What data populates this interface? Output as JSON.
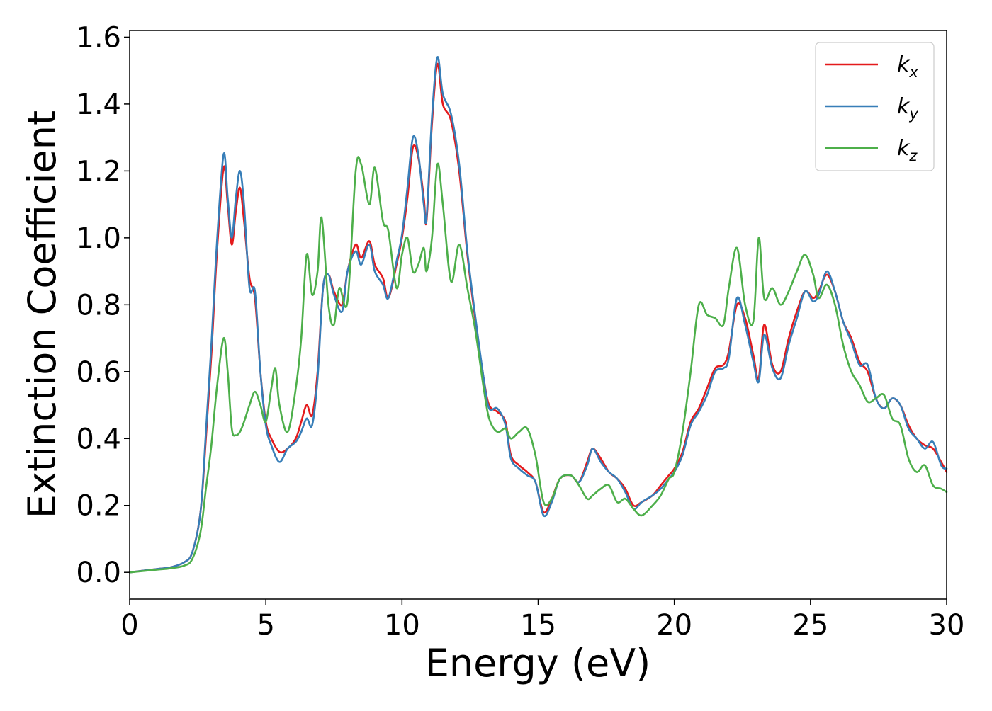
{
  "chart_data": {
    "type": "line",
    "title": "",
    "xlabel": "Energy (eV)",
    "ylabel": "Extinction Coefficient",
    "xlim": [
      0,
      30
    ],
    "ylim": [
      -0.08,
      1.62
    ],
    "xticks": [
      0,
      5,
      10,
      15,
      20,
      25,
      30
    ],
    "yticks": [
      0.0,
      0.2,
      0.4,
      0.6,
      0.8,
      1.0,
      1.2,
      1.4,
      1.6
    ],
    "xtick_labels": [
      "0",
      "5",
      "10",
      "15",
      "20",
      "25",
      "30"
    ],
    "ytick_labels": [
      "0.0",
      "0.2",
      "0.4",
      "0.6",
      "0.8",
      "1.0",
      "1.2",
      "1.4",
      "1.6"
    ],
    "grid": false,
    "legend": {
      "position": "top-right"
    },
    "series": [
      {
        "name": "k_x",
        "label_main": "k",
        "label_sub": "x",
        "color": "#e41a1c",
        "x": [
          0,
          1,
          1.5,
          2,
          2.3,
          2.6,
          2.8,
          3.0,
          3.2,
          3.45,
          3.6,
          3.75,
          3.9,
          4.05,
          4.2,
          4.4,
          4.6,
          4.8,
          5.0,
          5.2,
          5.5,
          5.8,
          6.1,
          6.3,
          6.5,
          6.7,
          6.9,
          7.1,
          7.3,
          7.5,
          7.8,
          8.0,
          8.3,
          8.5,
          8.8,
          9.0,
          9.3,
          9.5,
          9.8,
          10.0,
          10.2,
          10.4,
          10.6,
          10.8,
          10.9,
          11.1,
          11.3,
          11.5,
          11.8,
          12.1,
          12.4,
          12.7,
          13.0,
          13.2,
          13.5,
          13.8,
          14.0,
          14.3,
          14.6,
          14.9,
          15.2,
          15.5,
          15.8,
          16.2,
          16.5,
          16.8,
          17.0,
          17.3,
          17.6,
          17.9,
          18.2,
          18.5,
          18.8,
          19.2,
          19.5,
          19.8,
          20.0,
          20.3,
          20.6,
          20.9,
          21.2,
          21.5,
          21.8,
          22.0,
          22.3,
          22.6,
          22.9,
          23.1,
          23.3,
          23.6,
          23.9,
          24.2,
          24.5,
          24.8,
          25.1,
          25.3,
          25.6,
          25.9,
          26.2,
          26.5,
          26.8,
          27.1,
          27.4,
          27.7,
          28.0,
          28.3,
          28.6,
          28.9,
          29.2,
          29.5,
          29.8,
          30.0
        ],
        "y": [
          0.0,
          0.01,
          0.015,
          0.03,
          0.06,
          0.18,
          0.4,
          0.65,
          0.95,
          1.21,
          1.1,
          0.98,
          1.08,
          1.15,
          1.05,
          0.88,
          0.82,
          0.6,
          0.45,
          0.4,
          0.36,
          0.37,
          0.4,
          0.45,
          0.5,
          0.47,
          0.6,
          0.85,
          0.89,
          0.84,
          0.8,
          0.9,
          0.98,
          0.94,
          0.99,
          0.92,
          0.88,
          0.82,
          0.92,
          1.0,
          1.12,
          1.27,
          1.24,
          1.12,
          1.05,
          1.34,
          1.52,
          1.4,
          1.35,
          1.2,
          0.95,
          0.75,
          0.58,
          0.5,
          0.48,
          0.45,
          0.35,
          0.32,
          0.3,
          0.27,
          0.18,
          0.22,
          0.28,
          0.29,
          0.27,
          0.33,
          0.37,
          0.34,
          0.3,
          0.28,
          0.25,
          0.2,
          0.21,
          0.23,
          0.26,
          0.29,
          0.31,
          0.36,
          0.45,
          0.49,
          0.55,
          0.61,
          0.62,
          0.66,
          0.8,
          0.76,
          0.65,
          0.58,
          0.74,
          0.62,
          0.6,
          0.7,
          0.78,
          0.84,
          0.82,
          0.84,
          0.89,
          0.84,
          0.75,
          0.7,
          0.63,
          0.6,
          0.52,
          0.49,
          0.52,
          0.5,
          0.44,
          0.4,
          0.38,
          0.37,
          0.33,
          0.3
        ],
        "note_ignore": ""
      },
      {
        "name": "k_y",
        "label_main": "k",
        "label_sub": "y",
        "color": "#377eb8",
        "x": [
          0,
          1,
          1.5,
          2,
          2.3,
          2.6,
          2.8,
          3.0,
          3.2,
          3.45,
          3.6,
          3.75,
          3.9,
          4.05,
          4.2,
          4.4,
          4.6,
          4.8,
          5.0,
          5.2,
          5.5,
          5.8,
          6.1,
          6.3,
          6.5,
          6.7,
          6.9,
          7.1,
          7.3,
          7.5,
          7.8,
          8.0,
          8.3,
          8.5,
          8.8,
          9.0,
          9.3,
          9.5,
          9.8,
          10.0,
          10.2,
          10.4,
          10.6,
          10.8,
          10.9,
          11.1,
          11.3,
          11.5,
          11.8,
          12.1,
          12.4,
          12.7,
          13.0,
          13.2,
          13.5,
          13.8,
          14.0,
          14.3,
          14.6,
          14.9,
          15.2,
          15.5,
          15.8,
          16.2,
          16.5,
          16.8,
          17.0,
          17.3,
          17.6,
          17.9,
          18.2,
          18.5,
          18.8,
          19.2,
          19.5,
          19.8,
          20.0,
          20.3,
          20.6,
          20.9,
          21.2,
          21.5,
          21.8,
          22.0,
          22.3,
          22.6,
          22.9,
          23.1,
          23.3,
          23.6,
          23.9,
          24.2,
          24.5,
          24.8,
          25.1,
          25.3,
          25.6,
          25.9,
          26.2,
          26.5,
          26.8,
          27.1,
          27.4,
          27.7,
          28.0,
          28.3,
          28.6,
          28.9,
          29.2,
          29.5,
          29.8,
          30.0
        ],
        "y": [
          0.0,
          0.01,
          0.015,
          0.03,
          0.06,
          0.18,
          0.42,
          0.68,
          0.98,
          1.25,
          1.12,
          1.0,
          1.12,
          1.2,
          1.1,
          0.85,
          0.84,
          0.6,
          0.44,
          0.38,
          0.33,
          0.37,
          0.39,
          0.42,
          0.46,
          0.44,
          0.58,
          0.85,
          0.89,
          0.83,
          0.78,
          0.9,
          0.96,
          0.92,
          0.98,
          0.9,
          0.86,
          0.82,
          0.93,
          1.01,
          1.15,
          1.3,
          1.25,
          1.1,
          1.06,
          1.36,
          1.54,
          1.43,
          1.37,
          1.22,
          0.96,
          0.76,
          0.58,
          0.49,
          0.49,
          0.44,
          0.34,
          0.31,
          0.29,
          0.27,
          0.17,
          0.21,
          0.28,
          0.29,
          0.27,
          0.32,
          0.37,
          0.33,
          0.3,
          0.28,
          0.24,
          0.19,
          0.21,
          0.23,
          0.25,
          0.28,
          0.3,
          0.35,
          0.44,
          0.48,
          0.53,
          0.6,
          0.61,
          0.64,
          0.82,
          0.74,
          0.63,
          0.57,
          0.71,
          0.61,
          0.58,
          0.68,
          0.76,
          0.84,
          0.81,
          0.83,
          0.9,
          0.84,
          0.75,
          0.69,
          0.62,
          0.62,
          0.52,
          0.49,
          0.52,
          0.5,
          0.43,
          0.4,
          0.37,
          0.39,
          0.32,
          0.31
        ],
        "note_ignore": ""
      },
      {
        "name": "k_z",
        "label_main": "k",
        "label_sub": "z",
        "color": "#4daf4a",
        "x": [
          0,
          1,
          1.5,
          2,
          2.3,
          2.6,
          2.8,
          3.0,
          3.2,
          3.45,
          3.6,
          3.75,
          3.9,
          4.05,
          4.2,
          4.4,
          4.6,
          4.8,
          5.0,
          5.2,
          5.35,
          5.5,
          5.8,
          6.1,
          6.3,
          6.5,
          6.7,
          6.9,
          7.05,
          7.3,
          7.5,
          7.7,
          8.0,
          8.3,
          8.5,
          8.8,
          9.0,
          9.3,
          9.5,
          9.8,
          10.0,
          10.2,
          10.4,
          10.6,
          10.8,
          10.9,
          11.1,
          11.3,
          11.5,
          11.8,
          12.1,
          12.4,
          12.7,
          13.0,
          13.2,
          13.5,
          13.8,
          14.0,
          14.3,
          14.6,
          14.9,
          15.2,
          15.5,
          15.8,
          16.2,
          16.5,
          16.8,
          17.0,
          17.3,
          17.6,
          17.9,
          18.2,
          18.5,
          18.8,
          19.2,
          19.5,
          19.8,
          20.0,
          20.3,
          20.6,
          20.9,
          21.2,
          21.5,
          21.8,
          22.0,
          22.3,
          22.6,
          22.9,
          23.1,
          23.3,
          23.6,
          23.9,
          24.2,
          24.5,
          24.8,
          25.1,
          25.3,
          25.6,
          25.9,
          26.2,
          26.5,
          26.8,
          27.1,
          27.4,
          27.7,
          28.0,
          28.3,
          28.6,
          28.9,
          29.2,
          29.5,
          29.8,
          30.0
        ],
        "y": [
          0.0,
          0.008,
          0.012,
          0.02,
          0.04,
          0.12,
          0.25,
          0.38,
          0.55,
          0.7,
          0.6,
          0.43,
          0.41,
          0.42,
          0.45,
          0.5,
          0.54,
          0.5,
          0.45,
          0.55,
          0.61,
          0.5,
          0.42,
          0.55,
          0.7,
          0.95,
          0.83,
          0.9,
          1.06,
          0.8,
          0.74,
          0.85,
          0.81,
          1.2,
          1.22,
          1.1,
          1.21,
          1.05,
          1.02,
          0.85,
          0.95,
          1.0,
          0.9,
          0.92,
          0.97,
          0.9,
          1.0,
          1.22,
          1.1,
          0.87,
          0.98,
          0.85,
          0.72,
          0.55,
          0.46,
          0.42,
          0.43,
          0.4,
          0.42,
          0.43,
          0.35,
          0.21,
          0.22,
          0.28,
          0.29,
          0.26,
          0.22,
          0.23,
          0.25,
          0.26,
          0.21,
          0.22,
          0.19,
          0.17,
          0.2,
          0.23,
          0.28,
          0.3,
          0.42,
          0.6,
          0.8,
          0.77,
          0.76,
          0.74,
          0.85,
          0.97,
          0.8,
          0.75,
          1.0,
          0.82,
          0.85,
          0.8,
          0.84,
          0.9,
          0.95,
          0.89,
          0.82,
          0.86,
          0.8,
          0.68,
          0.6,
          0.56,
          0.51,
          0.52,
          0.53,
          0.46,
          0.44,
          0.34,
          0.3,
          0.32,
          0.26,
          0.25,
          0.24
        ],
        "note_ignore": ""
      }
    ]
  }
}
